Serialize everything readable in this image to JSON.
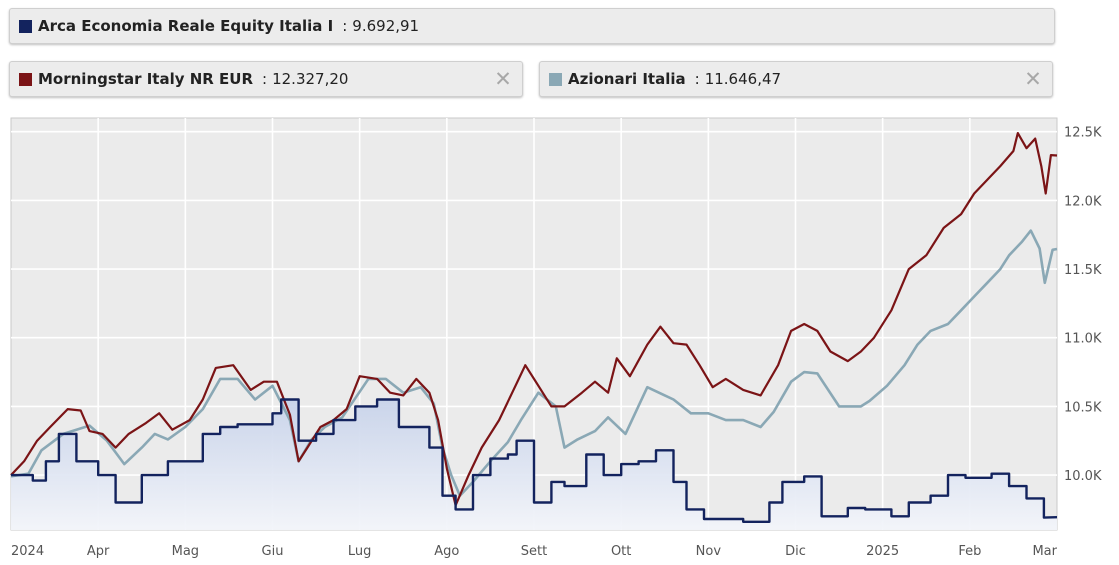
{
  "legend": [
    {
      "name": "Arca Economia Reale Equity Italia I",
      "value": "9.692,91",
      "color": "#13235e",
      "removable": false
    },
    {
      "name": "Morningstar Italy NR EUR",
      "value": "12.327,20",
      "color": "#7b1416",
      "removable": true
    },
    {
      "name": "Azionari Italia",
      "value": "11.646,47",
      "color": "#8aa8b5",
      "removable": true
    }
  ],
  "close_glyph": "✕",
  "separator": ":",
  "chart_data": {
    "type": "line",
    "x_labels": [
      "2024",
      "Apr",
      "Mag",
      "Giu",
      "Lug",
      "Ago",
      "Sett",
      "Ott",
      "Nov",
      "Dic",
      "2025",
      "Feb",
      "Mar"
    ],
    "ylim": [
      9600,
      12600
    ],
    "y_ticks": [
      10000,
      10500,
      11000,
      11500,
      12000,
      12500
    ],
    "y_tick_labels": [
      "10.0K",
      "10.5K",
      "11.0K",
      "11.5K",
      "12.0K",
      "12.5K"
    ],
    "grid": true,
    "series": [
      {
        "name": "Azionari Italia",
        "color": "#8aa8b5",
        "width": 2.6,
        "values": [
          [
            0,
            9990
          ],
          [
            0.2,
            10010
          ],
          [
            0.35,
            10180
          ],
          [
            0.6,
            10300
          ],
          [
            0.75,
            10330
          ],
          [
            0.9,
            10360
          ],
          [
            1.1,
            10250
          ],
          [
            1.3,
            10080
          ],
          [
            1.5,
            10200
          ],
          [
            1.65,
            10300
          ],
          [
            1.8,
            10260
          ],
          [
            2.0,
            10350
          ],
          [
            2.2,
            10480
          ],
          [
            2.4,
            10700
          ],
          [
            2.6,
            10700
          ],
          [
            2.8,
            10550
          ],
          [
            3.0,
            10650
          ],
          [
            3.2,
            10400
          ],
          [
            3.3,
            10100
          ],
          [
            3.45,
            10260
          ],
          [
            3.6,
            10350
          ],
          [
            3.8,
            10420
          ],
          [
            3.95,
            10560
          ],
          [
            4.1,
            10700
          ],
          [
            4.3,
            10700
          ],
          [
            4.5,
            10600
          ],
          [
            4.7,
            10640
          ],
          [
            4.85,
            10520
          ],
          [
            4.95,
            10200
          ],
          [
            5.05,
            10000
          ],
          [
            5.15,
            9850
          ],
          [
            5.3,
            9950
          ],
          [
            5.5,
            10100
          ],
          [
            5.7,
            10240
          ],
          [
            5.85,
            10400
          ],
          [
            6.05,
            10600
          ],
          [
            6.25,
            10500
          ],
          [
            6.35,
            10200
          ],
          [
            6.5,
            10260
          ],
          [
            6.7,
            10320
          ],
          [
            6.85,
            10420
          ],
          [
            7.05,
            10300
          ],
          [
            7.3,
            10640
          ],
          [
            7.5,
            10580
          ],
          [
            7.6,
            10550
          ],
          [
            7.8,
            10450
          ],
          [
            8.0,
            10450
          ],
          [
            8.2,
            10400
          ],
          [
            8.4,
            10400
          ],
          [
            8.6,
            10350
          ],
          [
            8.75,
            10460
          ],
          [
            8.95,
            10680
          ],
          [
            9.1,
            10750
          ],
          [
            9.25,
            10740
          ],
          [
            9.5,
            10500
          ],
          [
            9.75,
            10500
          ],
          [
            9.85,
            10540
          ],
          [
            10.05,
            10650
          ],
          [
            10.25,
            10800
          ],
          [
            10.4,
            10950
          ],
          [
            10.55,
            11050
          ],
          [
            10.75,
            11100
          ],
          [
            10.9,
            11200
          ],
          [
            11.05,
            11300
          ],
          [
            11.2,
            11400
          ],
          [
            11.35,
            11500
          ],
          [
            11.45,
            11600
          ],
          [
            11.6,
            11700
          ],
          [
            11.7,
            11780
          ],
          [
            11.8,
            11650
          ],
          [
            11.86,
            11400
          ],
          [
            11.95,
            11640
          ],
          [
            12.0,
            11646
          ]
        ]
      },
      {
        "name": "Morningstar Italy NR EUR",
        "color": "#7b1416",
        "width": 2.2,
        "values": [
          [
            0,
            10000
          ],
          [
            0.15,
            10100
          ],
          [
            0.3,
            10250
          ],
          [
            0.45,
            10350
          ],
          [
            0.65,
            10480
          ],
          [
            0.8,
            10470
          ],
          [
            0.9,
            10320
          ],
          [
            1.05,
            10300
          ],
          [
            1.2,
            10200
          ],
          [
            1.35,
            10300
          ],
          [
            1.55,
            10380
          ],
          [
            1.7,
            10450
          ],
          [
            1.85,
            10330
          ],
          [
            2.05,
            10400
          ],
          [
            2.2,
            10550
          ],
          [
            2.35,
            10780
          ],
          [
            2.55,
            10800
          ],
          [
            2.75,
            10620
          ],
          [
            2.9,
            10680
          ],
          [
            3.05,
            10680
          ],
          [
            3.2,
            10440
          ],
          [
            3.3,
            10100
          ],
          [
            3.4,
            10200
          ],
          [
            3.55,
            10350
          ],
          [
            3.7,
            10400
          ],
          [
            3.85,
            10480
          ],
          [
            4.0,
            10720
          ],
          [
            4.2,
            10700
          ],
          [
            4.35,
            10600
          ],
          [
            4.5,
            10580
          ],
          [
            4.65,
            10700
          ],
          [
            4.8,
            10600
          ],
          [
            4.9,
            10400
          ],
          [
            5.0,
            10050
          ],
          [
            5.1,
            9780
          ],
          [
            5.25,
            10000
          ],
          [
            5.4,
            10200
          ],
          [
            5.6,
            10400
          ],
          [
            5.75,
            10600
          ],
          [
            5.9,
            10800
          ],
          [
            6.05,
            10650
          ],
          [
            6.2,
            10500
          ],
          [
            6.35,
            10500
          ],
          [
            6.55,
            10600
          ],
          [
            6.7,
            10680
          ],
          [
            6.85,
            10600
          ],
          [
            6.95,
            10850
          ],
          [
            7.1,
            10720
          ],
          [
            7.3,
            10950
          ],
          [
            7.45,
            11080
          ],
          [
            7.6,
            10960
          ],
          [
            7.75,
            10950
          ],
          [
            7.9,
            10800
          ],
          [
            8.05,
            10640
          ],
          [
            8.2,
            10700
          ],
          [
            8.4,
            10620
          ],
          [
            8.6,
            10580
          ],
          [
            8.8,
            10800
          ],
          [
            8.95,
            11050
          ],
          [
            9.1,
            11100
          ],
          [
            9.25,
            11050
          ],
          [
            9.4,
            10900
          ],
          [
            9.6,
            10830
          ],
          [
            9.75,
            10900
          ],
          [
            9.9,
            11000
          ],
          [
            10.1,
            11200
          ],
          [
            10.3,
            11500
          ],
          [
            10.5,
            11600
          ],
          [
            10.7,
            11800
          ],
          [
            10.9,
            11900
          ],
          [
            11.05,
            12050
          ],
          [
            11.2,
            12150
          ],
          [
            11.35,
            12250
          ],
          [
            11.5,
            12360
          ],
          [
            11.55,
            12490
          ],
          [
            11.65,
            12380
          ],
          [
            11.75,
            12450
          ],
          [
            11.82,
            12250
          ],
          [
            11.87,
            12050
          ],
          [
            11.93,
            12330
          ],
          [
            12.0,
            12327
          ]
        ]
      },
      {
        "name": "Arca Economia Reale Equity Italia I",
        "color": "#13235e",
        "width": 2.4,
        "values": [
          [
            0,
            10000
          ],
          [
            0.25,
            10000
          ],
          [
            0.25,
            9960
          ],
          [
            0.4,
            9960
          ],
          [
            0.4,
            10100
          ],
          [
            0.55,
            10100
          ],
          [
            0.55,
            10300
          ],
          [
            0.75,
            10300
          ],
          [
            0.75,
            10100
          ],
          [
            1.0,
            10100
          ],
          [
            1.0,
            10000
          ],
          [
            1.2,
            10000
          ],
          [
            1.2,
            9800
          ],
          [
            1.5,
            9800
          ],
          [
            1.5,
            10000
          ],
          [
            1.8,
            10000
          ],
          [
            1.8,
            10100
          ],
          [
            2.2,
            10100
          ],
          [
            2.2,
            10300
          ],
          [
            2.4,
            10300
          ],
          [
            2.4,
            10350
          ],
          [
            2.6,
            10350
          ],
          [
            2.6,
            10370
          ],
          [
            3.0,
            10370
          ],
          [
            3.0,
            10450
          ],
          [
            3.1,
            10450
          ],
          [
            3.1,
            10550
          ],
          [
            3.3,
            10550
          ],
          [
            3.3,
            10250
          ],
          [
            3.5,
            10250
          ],
          [
            3.5,
            10300
          ],
          [
            3.7,
            10300
          ],
          [
            3.7,
            10400
          ],
          [
            3.95,
            10400
          ],
          [
            3.95,
            10500
          ],
          [
            4.2,
            10500
          ],
          [
            4.2,
            10550
          ],
          [
            4.45,
            10550
          ],
          [
            4.45,
            10350
          ],
          [
            4.8,
            10350
          ],
          [
            4.8,
            10200
          ],
          [
            4.95,
            10200
          ],
          [
            4.95,
            9850
          ],
          [
            5.1,
            9850
          ],
          [
            5.1,
            9750
          ],
          [
            5.3,
            9750
          ],
          [
            5.3,
            10000
          ],
          [
            5.5,
            10000
          ],
          [
            5.5,
            10120
          ],
          [
            5.7,
            10120
          ],
          [
            5.7,
            10150
          ],
          [
            5.8,
            10150
          ],
          [
            5.8,
            10250
          ],
          [
            6.0,
            10250
          ],
          [
            6.0,
            9800
          ],
          [
            6.2,
            9800
          ],
          [
            6.2,
            9950
          ],
          [
            6.35,
            9950
          ],
          [
            6.35,
            9920
          ],
          [
            6.6,
            9920
          ],
          [
            6.6,
            10150
          ],
          [
            6.8,
            10150
          ],
          [
            6.8,
            10000
          ],
          [
            7.0,
            10000
          ],
          [
            7.0,
            10080
          ],
          [
            7.2,
            10080
          ],
          [
            7.2,
            10100
          ],
          [
            7.4,
            10100
          ],
          [
            7.4,
            10180
          ],
          [
            7.6,
            10180
          ],
          [
            7.6,
            9950
          ],
          [
            7.75,
            9950
          ],
          [
            7.75,
            9750
          ],
          [
            7.95,
            9750
          ],
          [
            7.95,
            9680
          ],
          [
            8.4,
            9680
          ],
          [
            8.4,
            9660
          ],
          [
            8.7,
            9660
          ],
          [
            8.7,
            9800
          ],
          [
            8.85,
            9800
          ],
          [
            8.85,
            9950
          ],
          [
            9.1,
            9950
          ],
          [
            9.1,
            9990
          ],
          [
            9.3,
            9990
          ],
          [
            9.3,
            9700
          ],
          [
            9.6,
            9700
          ],
          [
            9.6,
            9760
          ],
          [
            9.8,
            9760
          ],
          [
            9.8,
            9750
          ],
          [
            10.1,
            9750
          ],
          [
            10.1,
            9700
          ],
          [
            10.3,
            9700
          ],
          [
            10.3,
            9800
          ],
          [
            10.55,
            9800
          ],
          [
            10.55,
            9850
          ],
          [
            10.75,
            9850
          ],
          [
            10.75,
            10000
          ],
          [
            10.95,
            10000
          ],
          [
            10.95,
            9980
          ],
          [
            11.25,
            9980
          ],
          [
            11.25,
            10010
          ],
          [
            11.45,
            10010
          ],
          [
            11.45,
            9920
          ],
          [
            11.65,
            9920
          ],
          [
            11.65,
            9830
          ],
          [
            11.85,
            9830
          ],
          [
            11.85,
            9690
          ],
          [
            12.0,
            9693
          ]
        ]
      }
    ]
  }
}
